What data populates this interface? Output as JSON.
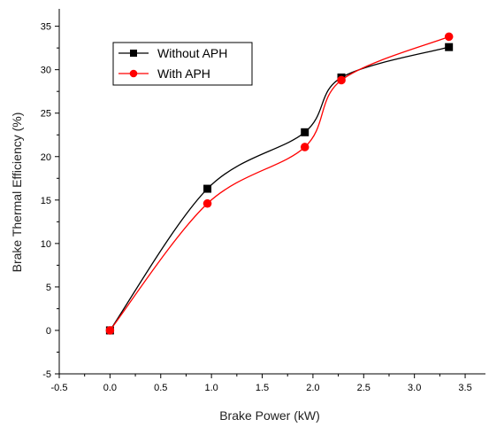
{
  "chart_data": {
    "type": "line",
    "title": "",
    "xlabel": "Brake Power (kW)",
    "ylabel": "Brake Thermal Efficiency (%)",
    "xlim": [
      -0.5,
      3.7
    ],
    "ylim": [
      -5,
      37
    ],
    "xticks": [
      -0.5,
      0.0,
      0.5,
      1.0,
      1.5,
      2.0,
      2.5,
      3.0,
      3.5
    ],
    "xtick_labels": [
      "-0.5",
      "0.0",
      "0.5",
      "1.0",
      "1.5",
      "2.0",
      "2.5",
      "3.0",
      "3.5"
    ],
    "yticks": [
      -5,
      0,
      5,
      10,
      15,
      20,
      25,
      30,
      35
    ],
    "ytick_labels": [
      "-5",
      "0",
      "5",
      "10",
      "15",
      "20",
      "25",
      "30",
      "35"
    ],
    "grid": false,
    "legend_position": "top-left",
    "series": [
      {
        "name": "Without APH",
        "color": "#000000",
        "marker": "square",
        "x": [
          0.0,
          0.96,
          1.92,
          2.28,
          3.34
        ],
        "y": [
          0.0,
          16.3,
          22.8,
          29.1,
          32.6
        ]
      },
      {
        "name": "With APH",
        "color": "#ff0000",
        "marker": "circle",
        "x": [
          0.0,
          0.96,
          1.92,
          2.28,
          3.34
        ],
        "y": [
          0.0,
          14.6,
          21.1,
          28.8,
          33.8
        ]
      }
    ]
  }
}
